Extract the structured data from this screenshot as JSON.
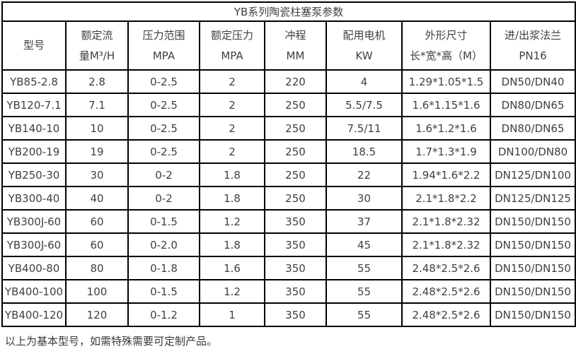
{
  "title": "YB系列陶瓷柱塞泵参数",
  "note": "以上为基本型号，如需特殊需要可定制产品。",
  "colors": {
    "border": "#000000",
    "text": "#404040",
    "background": "#ffffff"
  },
  "table": {
    "columns": [
      {
        "line1": "型号",
        "line2": ""
      },
      {
        "line1": "额定流",
        "line2": "量M³/H"
      },
      {
        "line1": "压力范围",
        "line2": "MPA"
      },
      {
        "line1": "额定压力",
        "line2": "MPA"
      },
      {
        "line1": "冲程",
        "line2": "MM"
      },
      {
        "line1": "配用电机",
        "line2": "KW"
      },
      {
        "line1": "外形尺寸",
        "line2": "长*宽*高（M）"
      },
      {
        "line1": "进/出浆法兰",
        "line2": "PN16"
      }
    ],
    "rows": [
      [
        "YB85-2.8",
        "2.8",
        "0-2.5",
        "2",
        "220",
        "4",
        "1.29*1.05*1.5",
        "DN50/DN40"
      ],
      [
        "YB120-7.1",
        "7.1",
        "0-2.5",
        "2",
        "250",
        "5.5/7.5",
        "1.6*1.15*1.6",
        "DN80/DN65"
      ],
      [
        "YB140-10",
        "10",
        "0-2.5",
        "2",
        "250",
        "7.5/11",
        "1.6*1.2*1.6",
        "DN80/DN65"
      ],
      [
        "YB200-19",
        "19",
        "0-2.5",
        "2",
        "250",
        "18.5",
        "1.7*1.3*1.9",
        "DN100/DN80"
      ],
      [
        "YB250-30",
        "30",
        "0-2",
        "1.8",
        "250",
        "22",
        "1.94*1.6*2.2",
        "DN125/DN100"
      ],
      [
        "YB300-40",
        "40",
        "0-2",
        "1.8",
        "250",
        "30",
        "2.1*1.8*2.2",
        "DN125/DN125"
      ],
      [
        "YB300J-60",
        "60",
        "0-1.5",
        "1.2",
        "350",
        "37",
        "2.1*1.8*2.32",
        "DN150/DN150"
      ],
      [
        "YB300J-60",
        "60",
        "0-2.0",
        "1.8",
        "350",
        "45",
        "2.1*1.8*2.32",
        "DN150/DN150"
      ],
      [
        "YB400-80",
        "80",
        "0-1.8",
        "1.6",
        "350",
        "55",
        "2.48*2.5*2.6",
        "DN150/DN150"
      ],
      [
        "YB400-100",
        "100",
        "0-1.5",
        "1.2",
        "350",
        "55",
        "2.48*2.5*2.6",
        "DN150/DN150"
      ],
      [
        "YB400-120",
        "120",
        "0-1.2",
        "1",
        "350",
        "55",
        "2.48*2.5*2.6",
        "DN150/DN150"
      ]
    ]
  }
}
